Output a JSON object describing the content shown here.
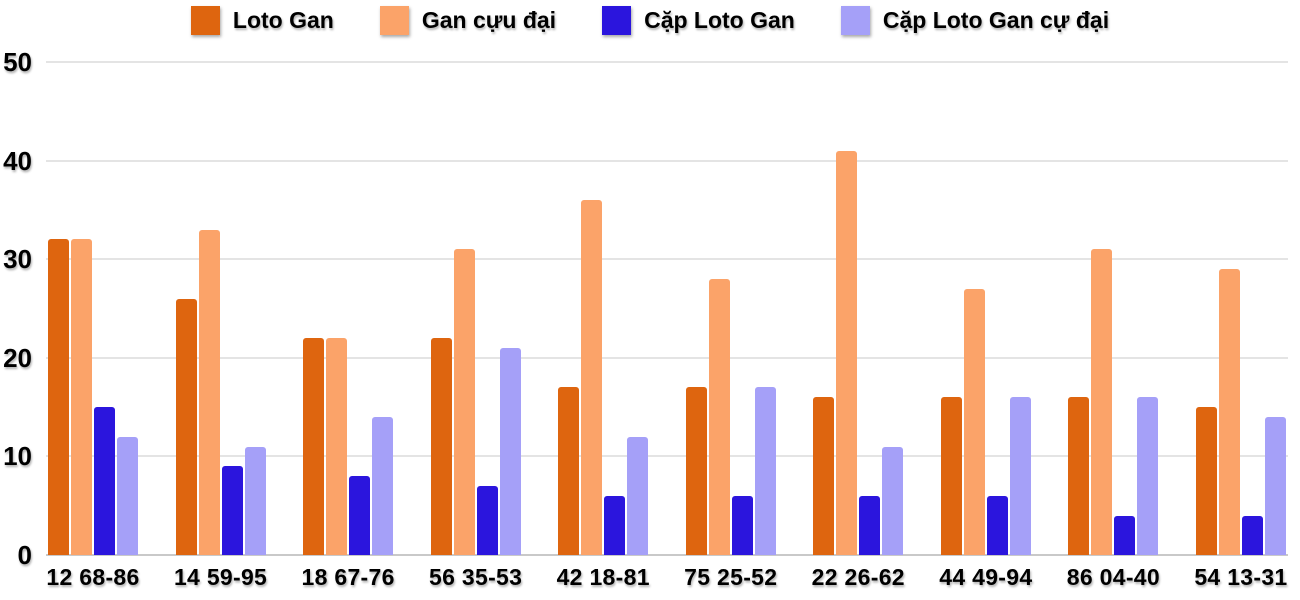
{
  "chart_data": {
    "type": "bar",
    "title": "",
    "categories": [
      "12 68-86",
      "14 59-95",
      "18 67-76",
      "56 35-53",
      "42 18-81",
      "75 25-52",
      "22 26-62",
      "44 49-94",
      "86 04-40",
      "54 13-31"
    ],
    "series": [
      {
        "name": "Loto Gan",
        "color": "#de650f",
        "values": [
          32,
          26,
          22,
          22,
          17,
          17,
          16,
          16,
          16,
          15
        ]
      },
      {
        "name": "Gan cựu đại",
        "color": "#fba369",
        "values": [
          32,
          33,
          22,
          31,
          36,
          28,
          41,
          27,
          31,
          29
        ]
      },
      {
        "name": "Cặp Loto Gan",
        "color": "#2b15dd",
        "values": [
          15,
          9,
          8,
          7,
          6,
          6,
          6,
          6,
          4,
          4
        ]
      },
      {
        "name": "Cặp Loto Gan cự đại",
        "color": "#a5a0f8",
        "values": [
          12,
          11,
          14,
          21,
          12,
          17,
          11,
          16,
          16,
          14
        ]
      }
    ],
    "xlabel": "",
    "ylabel": "",
    "ylim": [
      0,
      50
    ],
    "yticks": [
      0,
      10,
      20,
      30,
      40,
      50
    ],
    "grid": true,
    "legend_position": "top",
    "background_color": "#ffffff",
    "gridline_color": "#e4e4e4",
    "baseline_color": "#c9c9c9",
    "text_color": "#000000"
  }
}
